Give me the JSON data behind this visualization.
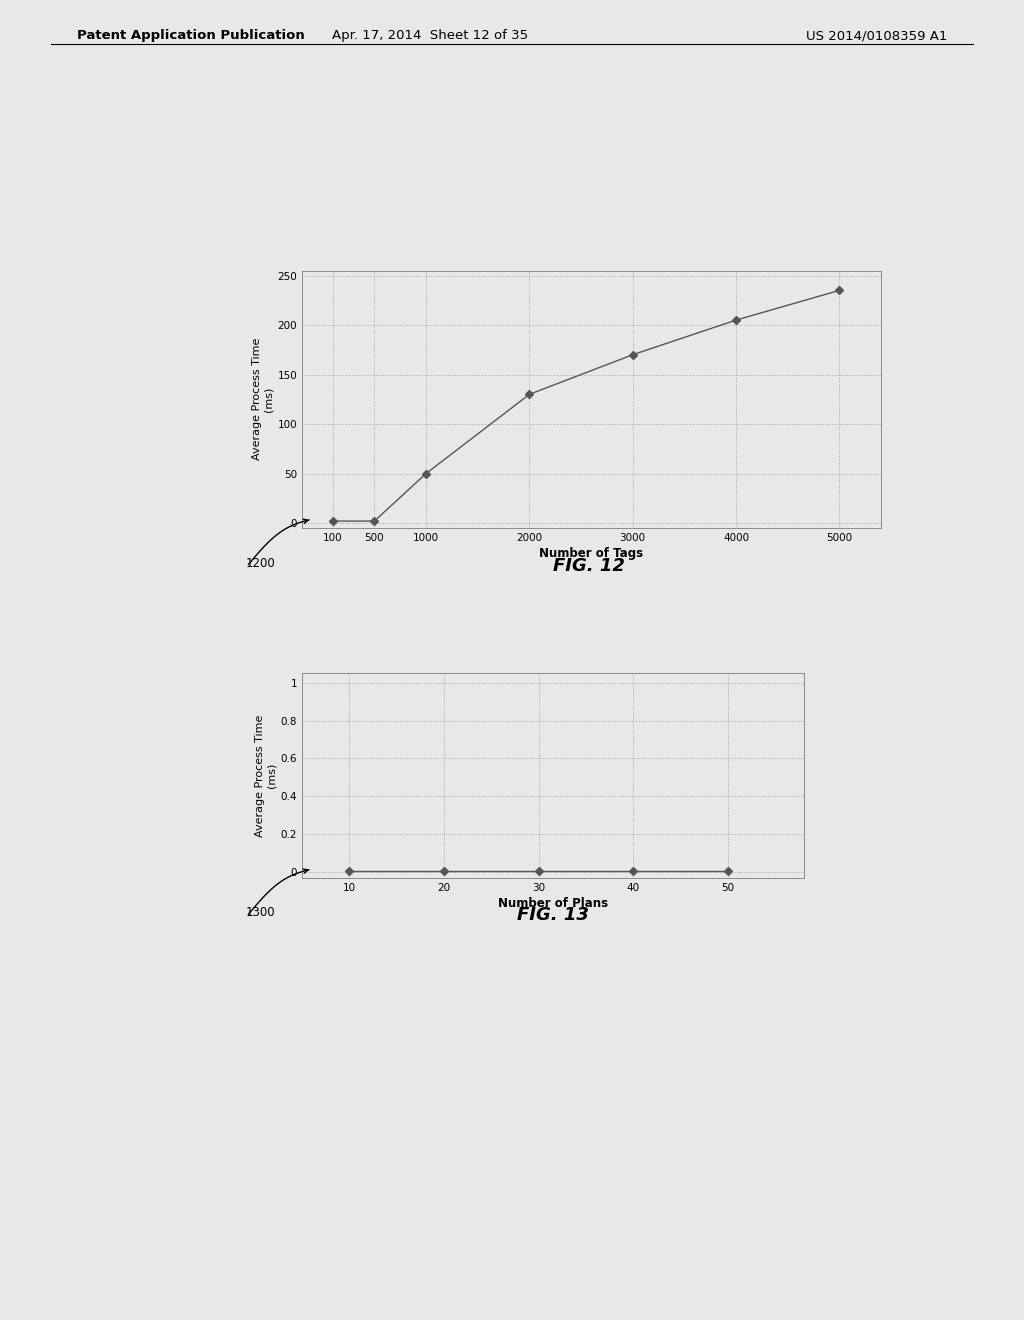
{
  "fig12": {
    "x": [
      100,
      500,
      1000,
      2000,
      3000,
      4000,
      5000
    ],
    "y": [
      2,
      2,
      50,
      130,
      170,
      205,
      235
    ],
    "xlabel": "Number of Tags",
    "ylabel": "Average Process Time\n(ms)",
    "yticks": [
      0,
      50,
      100,
      150,
      200,
      250
    ],
    "xticks": [
      100,
      500,
      1000,
      2000,
      3000,
      4000,
      5000
    ],
    "xlim": [
      -200,
      5400
    ],
    "ylim": [
      -5,
      255
    ],
    "label": "1200",
    "fig_label": "FIG. 12"
  },
  "fig13": {
    "x": [
      10,
      20,
      30,
      40,
      50
    ],
    "y": [
      0.005,
      0.005,
      0.005,
      0.005,
      0.005
    ],
    "xlabel": "Number of Plans",
    "ylabel": "Average Process Time\n(ms)",
    "yticks": [
      0,
      0.2,
      0.4,
      0.6,
      0.8,
      1
    ],
    "xticks": [
      10,
      20,
      30,
      40,
      50
    ],
    "xlim": [
      5,
      58
    ],
    "ylim": [
      -0.03,
      1.05
    ],
    "label": "1300",
    "fig_label": "FIG. 13"
  },
  "header_left": "Patent Application Publication",
  "header_center": "Apr. 17, 2014  Sheet 12 of 35",
  "header_right": "US 2014/0108359 A1",
  "background_color": "#e8e8e8",
  "line_color": "#555555",
  "marker": "D",
  "marker_size": 4,
  "grid_color": "#888888",
  "grid_style": "dotted",
  "box_color": "#888888",
  "chart_bg": "#e8e8e8"
}
